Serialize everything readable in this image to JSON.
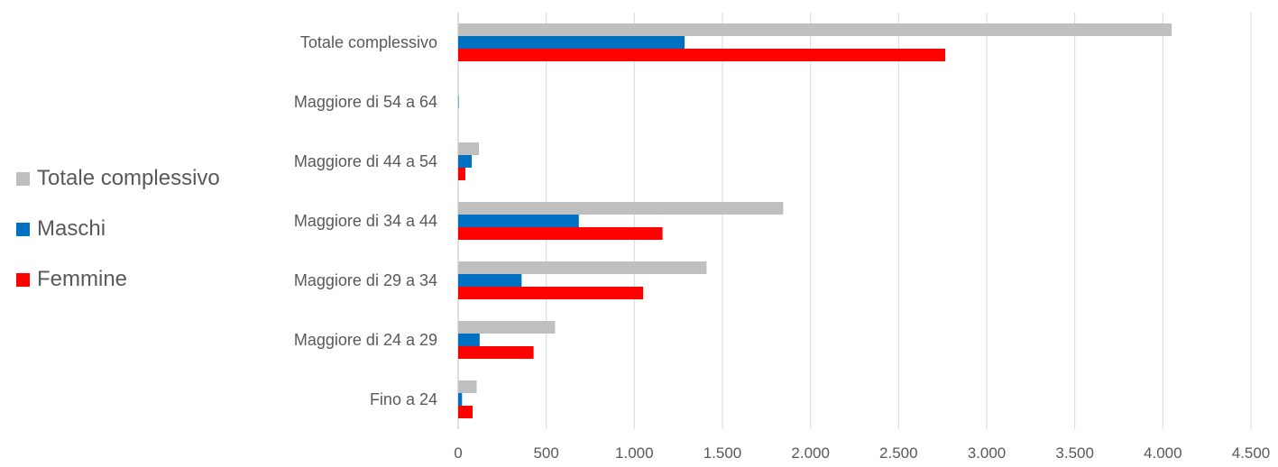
{
  "chart_data": {
    "type": "bar",
    "orientation": "horizontal",
    "categories": [
      "Fino a 24",
      "Maggiore di 24 a 29",
      "Maggiore di 29 a 34",
      "Maggiore di 34 a 44",
      "Maggiore di 44 a 54",
      "Maggiore di 54 a 64",
      "Totale complessivo"
    ],
    "series": [
      {
        "name": "Totale complessivo",
        "color": "#BFBFBF",
        "values": [
          105,
          550,
          1410,
          1845,
          118,
          3,
          4050
        ]
      },
      {
        "name": "Maschi",
        "color": "#0070C0",
        "values": [
          22,
          122,
          360,
          685,
          77,
          3,
          1285
        ]
      },
      {
        "name": "Femmine",
        "color": "#FF0000",
        "values": [
          82,
          428,
          1050,
          1160,
          41,
          0,
          2765
        ]
      }
    ],
    "xlim": [
      0,
      4500
    ],
    "xticks": [
      0,
      500,
      1000,
      1500,
      2000,
      2500,
      3000,
      3500,
      4000,
      4500
    ],
    "xtick_labels": [
      "0",
      "500",
      "1.000",
      "1.500",
      "2.000",
      "2.500",
      "3.000",
      "3.500",
      "4.000",
      "4.500"
    ],
    "grid": "vertical",
    "legend_position": "left",
    "title": "",
    "xlabel": "",
    "ylabel": ""
  }
}
